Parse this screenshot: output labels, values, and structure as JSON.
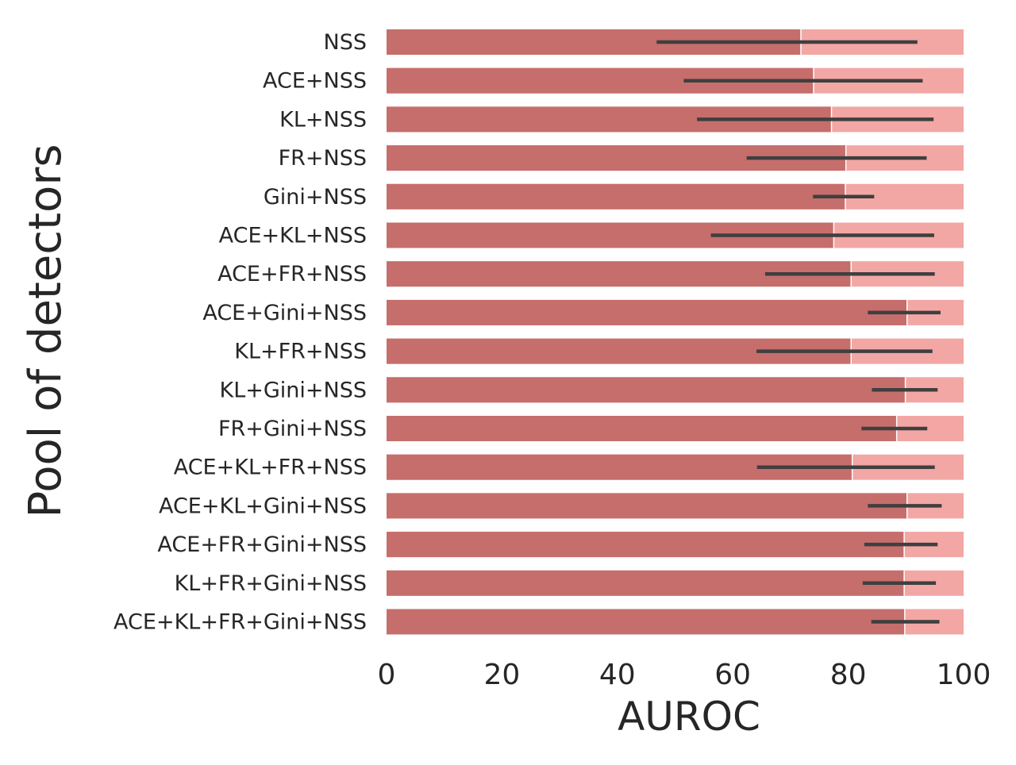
{
  "chart_data": {
    "type": "bar",
    "orientation": "horizontal",
    "title": "",
    "xlabel": "AUROC",
    "ylabel": "Pool of detectors",
    "xlim": [
      0,
      100
    ],
    "xticks": [
      "0",
      "20",
      "40",
      "60",
      "80",
      "100"
    ],
    "grid": false,
    "legend": "none",
    "categories": [
      "NSS",
      "ACE+NSS",
      "KL+NSS",
      "FR+NSS",
      "Gini+NSS",
      "ACE+KL+NSS",
      "ACE+FR+NSS",
      "ACE+Gini+NSS",
      "KL+FR+NSS",
      "KL+Gini+NSS",
      "FR+Gini+NSS",
      "ACE+KL+FR+NSS",
      "ACE+KL+Gini+NSS",
      "ACE+FR+Gini+NSS",
      "KL+FR+Gini+NSS",
      "ACE+KL+FR+Gini+NSS"
    ],
    "series": [
      {
        "values": [
          71.8,
          74.0,
          77.1,
          79.6,
          79.5,
          77.5,
          80.5,
          90.2,
          80.5,
          89.9,
          88.4,
          80.7,
          90.2,
          89.7,
          89.7,
          89.8
        ],
        "error_low": [
          46.8,
          51.5,
          53.8,
          62.4,
          73.9,
          56.2,
          65.6,
          83.4,
          64.1,
          84.1,
          82.3,
          64.2,
          83.4,
          82.8,
          82.5,
          84.0
        ],
        "error_high": [
          92.0,
          92.9,
          94.8,
          93.6,
          84.5,
          94.9,
          95.0,
          96.0,
          94.6,
          95.5,
          93.7,
          95.0,
          96.2,
          95.5,
          95.2,
          95.8
        ]
      }
    ],
    "reference_max": 100,
    "colors": {
      "bar": "#c66e6c",
      "background_bar": "#f2a7a4",
      "error": "#3f3f3f",
      "text": "#262626"
    }
  }
}
